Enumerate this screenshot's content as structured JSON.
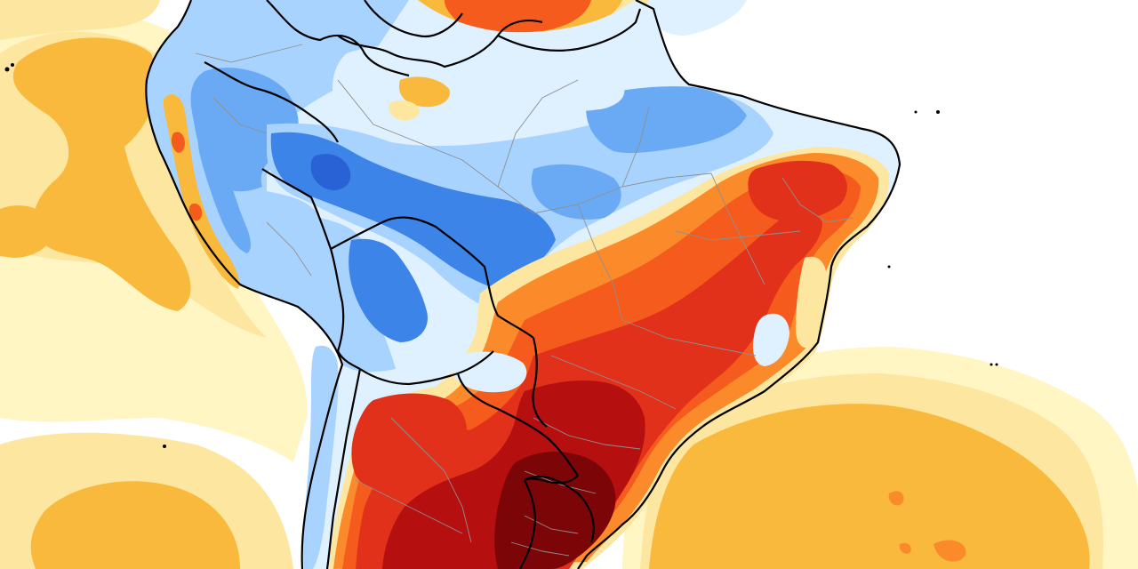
{
  "map": {
    "type": "temperature-anomaly",
    "region": "South America",
    "colors": {
      "ocean": "#ffffff",
      "very_light_yellow": "#fff6c4",
      "light_yellow": "#fde6a0",
      "light_orange": "#f9b93c",
      "orange": "#fb8a2a",
      "red_orange": "#f45b1c",
      "red": "#e2311a",
      "dark_red": "#b5100f",
      "maroon": "#7c0607",
      "very_light_blue": "#dff0ff",
      "light_blue": "#a9d3ff",
      "blue": "#6aaaf4",
      "medium_blue": "#3d84e8",
      "dark_blue": "#2862d4",
      "national_border": "#000000",
      "state_border": "#8f8f8f"
    }
  }
}
